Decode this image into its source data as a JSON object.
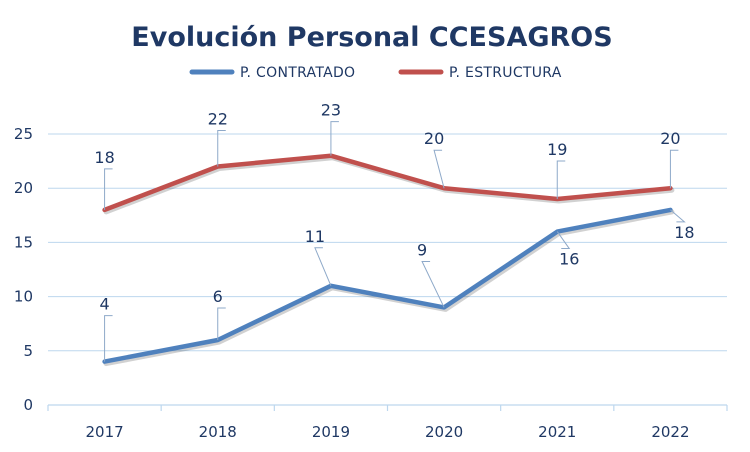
{
  "chart_data": {
    "type": "line",
    "title": "Evolución Personal CCESAGROS",
    "categories": [
      "2017",
      "2018",
      "2019",
      "2020",
      "2021",
      "2022"
    ],
    "series": [
      {
        "name": "P.  CONTRATADO",
        "values": [
          4,
          6,
          11,
          9,
          16,
          18
        ],
        "color": "#4F81BD"
      },
      {
        "name": "P.  ESTRUCTURA",
        "values": [
          18,
          22,
          23,
          20,
          19,
          20
        ],
        "color": "#C0504D"
      }
    ],
    "ylim": [
      0,
      25
    ],
    "yticks": [
      0,
      5,
      10,
      15,
      20,
      25
    ],
    "grid": true,
    "legend": "top-center",
    "colors": {
      "title": "#1F3864",
      "text": "#1F3864",
      "grid": "#BDD7EE",
      "axis": "#BDD7EE",
      "leader": "#8EA9C9"
    }
  }
}
